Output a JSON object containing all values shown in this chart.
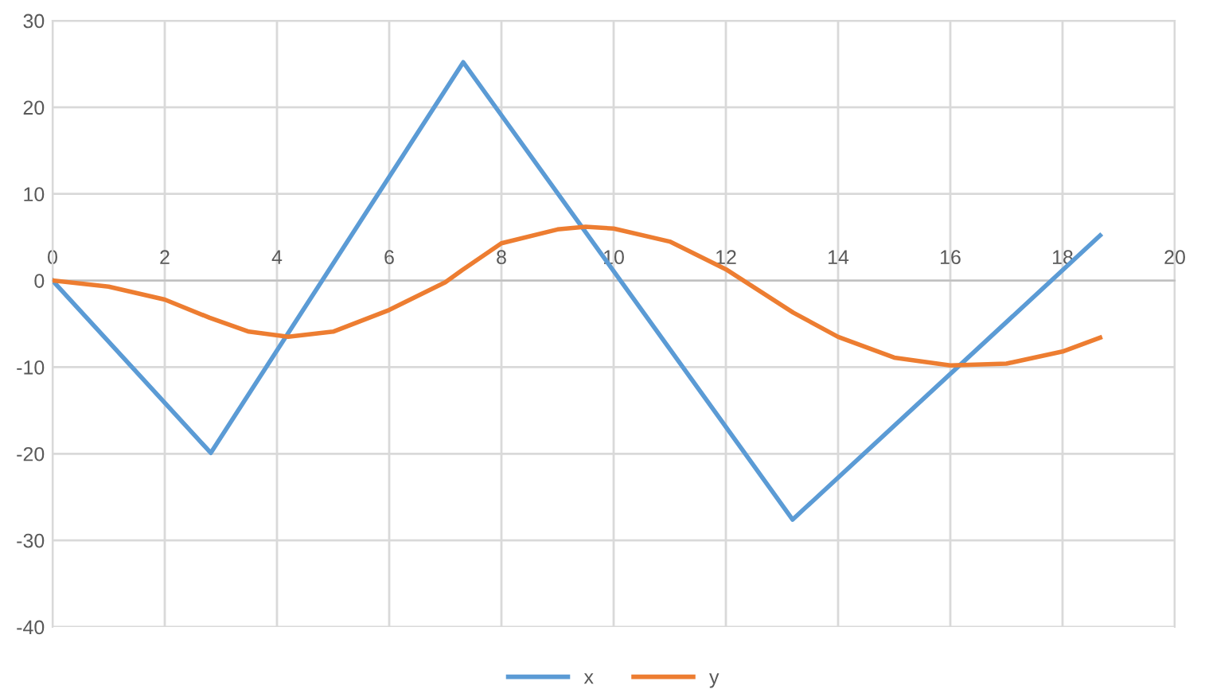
{
  "chart_data": {
    "type": "line",
    "xlim": [
      0,
      20
    ],
    "xticks": [
      0,
      2,
      4,
      6,
      8,
      10,
      12,
      14,
      16,
      18,
      20
    ],
    "ylim": [
      -40,
      30
    ],
    "yticks": [
      -40,
      -30,
      -20,
      -10,
      0,
      10,
      20,
      30
    ],
    "grid": true,
    "legend": "bottom",
    "marker": "none",
    "line_style": "solid",
    "series": [
      {
        "name": "x",
        "color": "#5b9bd5",
        "x": [
          0,
          2.82,
          7.32,
          13.19,
          18.67
        ],
        "values": [
          0,
          -19.9,
          25.2,
          -27.6,
          5.2
        ]
      },
      {
        "name": "y",
        "color": "#ed7d31",
        "x": [
          0,
          1,
          2,
          2.8,
          3.5,
          4.2,
          5,
          6,
          7,
          7.3,
          8,
          9,
          9.5,
          10,
          11,
          12,
          13.2,
          14,
          15,
          16,
          17,
          18,
          18.67
        ],
        "values": [
          0,
          -0.7,
          -2.2,
          -4.3,
          -5.9,
          -6.5,
          -5.9,
          -3.4,
          -0.2,
          1.2,
          4.3,
          5.9,
          6.2,
          6.0,
          4.5,
          1.3,
          -3.7,
          -6.5,
          -8.9,
          -9.8,
          -9.6,
          -8.2,
          -6.6
        ]
      }
    ]
  }
}
